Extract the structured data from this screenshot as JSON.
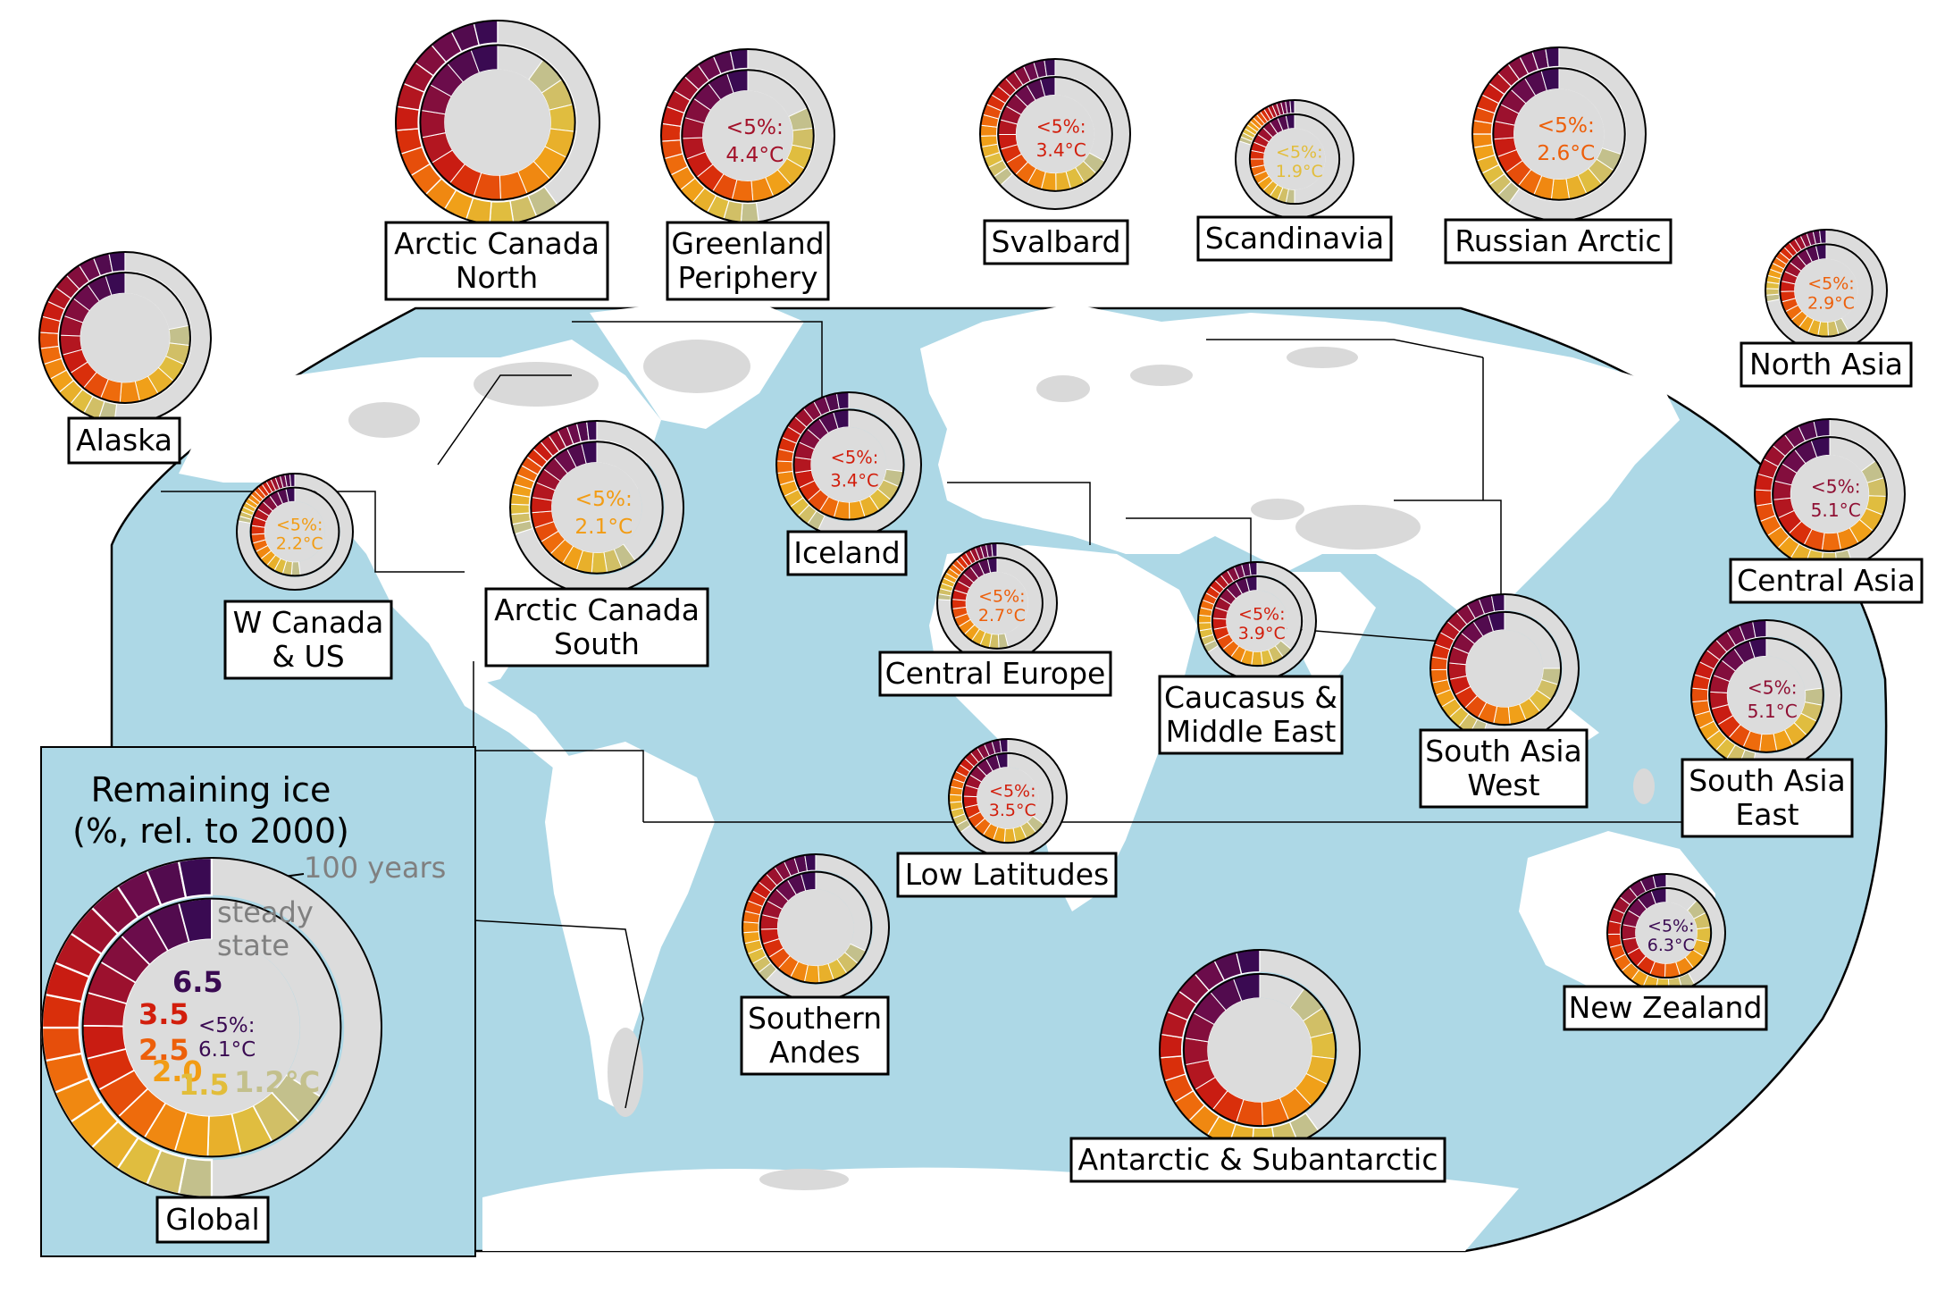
{
  "colors": {
    "ocean": "#add8e6",
    "land": "#ffffff",
    "glacier": "#d9d9d9",
    "remaining": "#dcdcdc",
    "warming_levels": {
      "1.2": "#c3c08c",
      "1.5": "#e2bd3a",
      "2.0": "#f29c14",
      "2.5": "#ed5f0a",
      "3.5": "#d21e0c",
      "4.5": "#8f0f33",
      "6.5": "#3a0a52"
    }
  },
  "legend": {
    "title_line1": "Remaining ice",
    "title_line2": "(%, rel. to 2000)",
    "outer_ring_note": "100 years",
    "inner_note_line1": "steady",
    "inner_note_line2": "state",
    "level_6_5": "6.5",
    "level_3_5": "3.5",
    "level_2_5": "2.5",
    "level_2_0": "2.0",
    "level_1_5": "1.5",
    "level_1_2": "1.2°C",
    "global_threshold_line1": "<5%:",
    "global_threshold_line2": "6.1°C",
    "global_label": "Global"
  },
  "regions": [
    {
      "id": "alaska",
      "name_lines": [
        "Alaska"
      ],
      "threshold_line1": "",
      "threshold_line2": ""
    },
    {
      "id": "arctic-canada-north",
      "name_lines": [
        "Arctic Canada",
        "North"
      ],
      "threshold_line1": "",
      "threshold_line2": ""
    },
    {
      "id": "greenland-periphery",
      "name_lines": [
        "Greenland",
        "Periphery"
      ],
      "threshold_line1": "<5%:",
      "threshold_line2": "4.4°C"
    },
    {
      "id": "svalbard",
      "name_lines": [
        "Svalbard"
      ],
      "threshold_line1": "<5%:",
      "threshold_line2": "3.4°C"
    },
    {
      "id": "scandinavia",
      "name_lines": [
        "Scandinavia"
      ],
      "threshold_line1": "<5%:",
      "threshold_line2": "1.9°C"
    },
    {
      "id": "russian-arctic",
      "name_lines": [
        "Russian Arctic"
      ],
      "threshold_line1": "<5%:",
      "threshold_line2": "2.6°C"
    },
    {
      "id": "north-asia",
      "name_lines": [
        "North Asia"
      ],
      "threshold_line1": "<5%:",
      "threshold_line2": "2.9°C"
    },
    {
      "id": "w-canada-us",
      "name_lines": [
        "W Canada",
        "& US"
      ],
      "threshold_line1": "<5%:",
      "threshold_line2": "2.2°C"
    },
    {
      "id": "arctic-canada-south",
      "name_lines": [
        "Arctic Canada",
        "South"
      ],
      "threshold_line1": "<5%:",
      "threshold_line2": "2.1°C"
    },
    {
      "id": "iceland",
      "name_lines": [
        "Iceland"
      ],
      "threshold_line1": "<5%:",
      "threshold_line2": "3.4°C"
    },
    {
      "id": "central-europe",
      "name_lines": [
        "Central Europe"
      ],
      "threshold_line1": "<5%:",
      "threshold_line2": "2.7°C"
    },
    {
      "id": "caucasus-middle-east",
      "name_lines": [
        "Caucasus &",
        "Middle East"
      ],
      "threshold_line1": "<5%:",
      "threshold_line2": "3.9°C"
    },
    {
      "id": "central-asia",
      "name_lines": [
        "Central Asia"
      ],
      "threshold_line1": "<5%:",
      "threshold_line2": "5.1°C"
    },
    {
      "id": "south-asia-west",
      "name_lines": [
        "South Asia",
        "West"
      ],
      "threshold_line1": "",
      "threshold_line2": ""
    },
    {
      "id": "south-asia-east",
      "name_lines": [
        "South Asia",
        "East"
      ],
      "threshold_line1": "<5%:",
      "threshold_line2": "5.1°C"
    },
    {
      "id": "low-latitudes",
      "name_lines": [
        "Low Latitudes"
      ],
      "threshold_line1": "<5%:",
      "threshold_line2": "3.5°C"
    },
    {
      "id": "southern-andes",
      "name_lines": [
        "Southern",
        "Andes"
      ],
      "threshold_line1": "",
      "threshold_line2": ""
    },
    {
      "id": "new-zealand",
      "name_lines": [
        "New Zealand"
      ],
      "threshold_line1": "<5%:",
      "threshold_line2": "6.3°C"
    },
    {
      "id": "antarctic-subantarctic",
      "name_lines": [
        "Antarctic & Subantarctic"
      ],
      "threshold_line1": "",
      "threshold_line2": ""
    }
  ]
}
